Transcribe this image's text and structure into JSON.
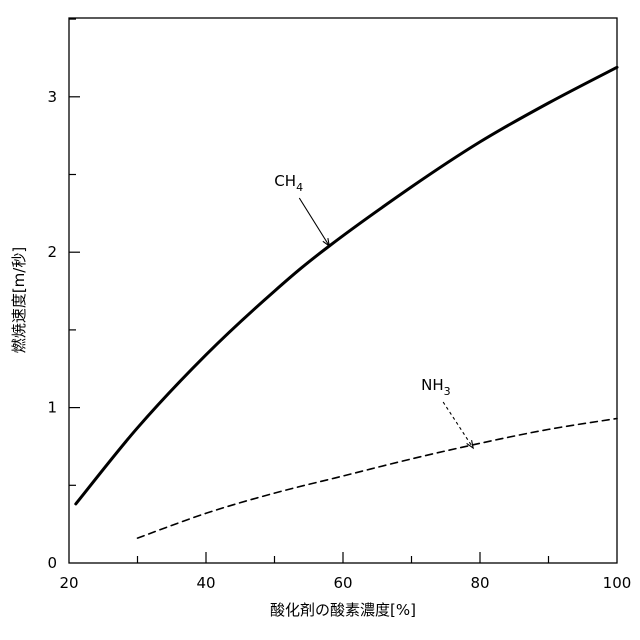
{
  "chart_data": {
    "type": "line",
    "title": "",
    "xlabel": "酸化剤の酸素濃度[%]",
    "ylabel": "燃焼速度[m/秒]",
    "xlim": [
      20,
      100
    ],
    "ylim": [
      0,
      3.5
    ],
    "x_ticks": [
      "20",
      "40",
      "60",
      "80",
      "100"
    ],
    "y_ticks": [
      "0",
      "1",
      "2",
      "3"
    ],
    "grid": false,
    "series": [
      {
        "name_main": "CH",
        "name_sub": "4",
        "style": "solid",
        "color": "#000000",
        "x": [
          21,
          30,
          40,
          50,
          58,
          70,
          80,
          90,
          100
        ],
        "y": [
          0.38,
          0.87,
          1.34,
          1.75,
          2.04,
          2.42,
          2.71,
          2.96,
          3.19
        ],
        "label_at": [
          58,
          2.04
        ]
      },
      {
        "name_main": "NH",
        "name_sub": "3",
        "style": "dashed",
        "color": "#000000",
        "x": [
          30,
          40,
          50,
          60,
          70,
          80,
          90,
          100
        ],
        "y": [
          0.16,
          0.32,
          0.45,
          0.56,
          0.67,
          0.77,
          0.86,
          0.93
        ],
        "label_at": [
          79,
          0.74
        ]
      }
    ]
  }
}
